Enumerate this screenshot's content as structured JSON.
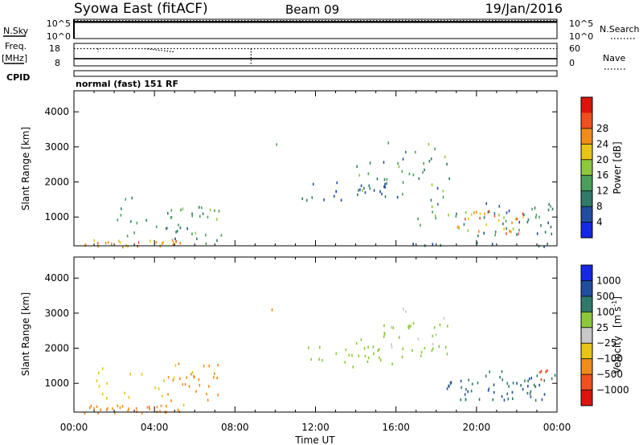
{
  "header": {
    "title": "Syowa East (fitACF)",
    "beam": "Beam 09",
    "date": "19/Jan/2016"
  },
  "colors": {
    "power_scale": [
      "#1428e6",
      "#1f4ea0",
      "#2f7a6a",
      "#4aa05a",
      "#8cc83c",
      "#e8c416",
      "#f08c1a",
      "#f0501e",
      "#dc140a"
    ],
    "velocity_scale": [
      "#1428e6",
      "#1f4ea0",
      "#2f7a6a",
      "#8cc83c",
      "#c8c8c8",
      "#e8c416",
      "#f08c1a",
      "#f0501e",
      "#dc140a"
    ]
  },
  "chart_data": [
    {
      "type": "line",
      "name": "nsky-panel",
      "left_label": "N.Sky",
      "right_label": "N.Search",
      "left_ticks": [
        "10^5",
        "10^0"
      ],
      "right_ticks": [
        "10^5",
        "10^0"
      ],
      "scale": "log",
      "ylim": [
        1,
        100000
      ],
      "series": [
        {
          "name": "N.Sky",
          "style": "solid",
          "values_level": 0.86
        },
        {
          "name": "N.Search",
          "style": "dotted",
          "values_level": 0.93
        }
      ]
    },
    {
      "type": "line",
      "name": "freq-panel",
      "left_label": "Freq.",
      "left_unit": "[MHz]",
      "right_label": "Nave",
      "left_ticks": [
        18,
        8
      ],
      "right_ticks": [
        60,
        0
      ],
      "ylim_left": [
        8,
        18
      ],
      "ylim_right": [
        0,
        60
      ],
      "series": [
        {
          "name": "Freq",
          "style": "solid",
          "value": 11.2
        },
        {
          "name": "Nave",
          "style": "dotted",
          "value": 46
        }
      ]
    },
    {
      "type": "table",
      "name": "cpid-strip",
      "label": "CPID",
      "text": "normal (fast) 151 RF"
    },
    {
      "type": "heatmap",
      "name": "power",
      "ylabel": "Slant Range [km]",
      "ylim": [
        180,
        4600
      ],
      "yticks": [
        1000,
        2000,
        3000,
        4000
      ],
      "xlim": [
        0,
        24
      ],
      "scale_label": "Power [dB]",
      "scale_ticks": [
        4,
        8,
        12,
        16,
        20,
        24,
        28
      ],
      "scale_range": [
        0,
        32
      ],
      "regions": [
        {
          "t": [
            0.5,
            6.0
          ],
          "r": [
            180,
            380
          ],
          "v": [
            18,
            26
          ],
          "d": 0.95
        },
        {
          "t": [
            1.0,
            6.2
          ],
          "r": [
            380,
            1600
          ],
          "v": [
            6,
            14
          ],
          "d": 0.12
        },
        {
          "t": [
            4.5,
            7.2
          ],
          "r": [
            500,
            1400
          ],
          "v": [
            9,
            16
          ],
          "d": 0.35
        },
        {
          "t": [
            6.3,
            7.3
          ],
          "r": [
            200,
            600
          ],
          "v": [
            10,
            14
          ],
          "d": 0.25
        },
        {
          "t": [
            8.0,
            10.2
          ],
          "r": [
            2900,
            3400
          ],
          "v": [
            10,
            14
          ],
          "d": 0.05
        },
        {
          "t": [
            11.3,
            15.5
          ],
          "r": [
            1500,
            2100
          ],
          "v": [
            3,
            8
          ],
          "d": 0.3
        },
        {
          "t": [
            14.0,
            18.8
          ],
          "r": [
            1500,
            2800
          ],
          "v": [
            6,
            16
          ],
          "d": 0.22
        },
        {
          "t": [
            15.5,
            18.5
          ],
          "r": [
            2000,
            3200
          ],
          "v": [
            8,
            17
          ],
          "d": 0.1
        },
        {
          "t": [
            17.0,
            19.5
          ],
          "r": [
            700,
            1500
          ],
          "v": [
            10,
            18
          ],
          "d": 0.25
        },
        {
          "t": [
            19.0,
            22.3
          ],
          "r": [
            550,
            1200
          ],
          "v": [
            14,
            29
          ],
          "d": 0.55
        },
        {
          "t": [
            20.0,
            24.0
          ],
          "r": [
            500,
            1500
          ],
          "v": [
            5,
            12
          ],
          "d": 0.35
        },
        {
          "t": [
            16.0,
            24.0
          ],
          "r": [
            180,
            350
          ],
          "v": [
            4,
            10
          ],
          "d": 0.25
        }
      ]
    },
    {
      "type": "heatmap",
      "name": "velocity",
      "ylabel": "Slant Range [km]",
      "ylim": [
        180,
        4600
      ],
      "yticks": [
        1000,
        2000,
        3000,
        4000
      ],
      "xlim": [
        0,
        24
      ],
      "xlabel": "Time UT",
      "xticks": [
        "00:00",
        "04:00",
        "08:00",
        "12:00",
        "16:00",
        "20:00",
        "00:00"
      ],
      "scale_label": "Velocity",
      "scale_unit": "[m s",
      "scale_unit_exp": "-1",
      "scale_unit_close": "]",
      "scale_ticks": [
        "1000",
        "500",
        "100",
        "25",
        "−25",
        "−100",
        "−500",
        "−1000"
      ],
      "regions": [
        {
          "t": [
            0.5,
            6.0
          ],
          "r": [
            180,
            420
          ],
          "v": [
            6,
            7
          ],
          "d": 0.95
        },
        {
          "t": [
            1.0,
            6.2
          ],
          "r": [
            400,
            1600
          ],
          "v": [
            5,
            6
          ],
          "d": 0.12
        },
        {
          "t": [
            4.5,
            7.2
          ],
          "r": [
            500,
            1600
          ],
          "v": [
            6,
            7
          ],
          "d": 0.35
        },
        {
          "t": [
            8.0,
            10.2
          ],
          "r": [
            2900,
            3400
          ],
          "v": [
            6,
            7
          ],
          "d": 0.05
        },
        {
          "t": [
            11.3,
            15.5
          ],
          "r": [
            1500,
            2100
          ],
          "v": [
            3,
            4
          ],
          "d": 0.28
        },
        {
          "t": [
            14.0,
            18.8
          ],
          "r": [
            1500,
            2800
          ],
          "v": [
            3,
            4
          ],
          "d": 0.22
        },
        {
          "t": [
            15.5,
            18.5
          ],
          "r": [
            2000,
            3200
          ],
          "v": [
            4,
            5
          ],
          "d": 0.1
        },
        {
          "t": [
            18.5,
            23.5
          ],
          "r": [
            550,
            1200
          ],
          "v": [
            1,
            3
          ],
          "d": 0.55
        },
        {
          "t": [
            20.0,
            24.0
          ],
          "r": [
            900,
            1400
          ],
          "v": [
            2,
            3
          ],
          "d": 0.3
        },
        {
          "t": [
            23.0,
            24.0
          ],
          "r": [
            1100,
            1400
          ],
          "v": [
            7,
            8
          ],
          "d": 0.6
        }
      ]
    }
  ]
}
